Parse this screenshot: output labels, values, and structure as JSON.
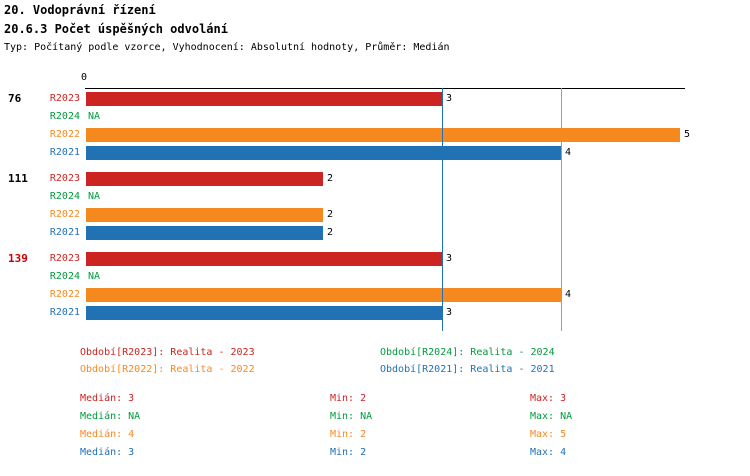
{
  "header": {
    "title1": "20. Vodoprávní řízení",
    "title2": "20.6.3 Počet úspěšných odvolání",
    "subtitle": "Typ: Počítaný podle vzorce, Vyhodnocení: Absolutní hodnoty, Průměr: Medián"
  },
  "colors": {
    "R2023": "#cc2421",
    "R2024": "#009a3d",
    "R2022": "#f6891e",
    "R2021": "#2171b5",
    "group_highlight": "#cc0000",
    "group_default": "#000000",
    "axis": "#000000",
    "value_label": "#000000"
  },
  "chart_data": {
    "type": "bar",
    "orientation": "horizontal",
    "title": "20.6.3 Počet úspěšných odvolání",
    "value_axis": {
      "origin_label": "0",
      "min": 0,
      "max": 5,
      "grid": false
    },
    "series_order": [
      "R2023",
      "R2024",
      "R2022",
      "R2021"
    ],
    "groups": [
      {
        "label": "76",
        "highlight": false,
        "rows": [
          {
            "series": "R2023",
            "value": 3,
            "value_label": "3"
          },
          {
            "series": "R2024",
            "value": null,
            "value_label": "NA"
          },
          {
            "series": "R2022",
            "value": 5,
            "value_label": "5"
          },
          {
            "series": "R2021",
            "value": 4,
            "value_label": "4"
          }
        ]
      },
      {
        "label": "111",
        "highlight": false,
        "rows": [
          {
            "series": "R2023",
            "value": 2,
            "value_label": "2"
          },
          {
            "series": "R2024",
            "value": null,
            "value_label": "NA"
          },
          {
            "series": "R2022",
            "value": 2,
            "value_label": "2"
          },
          {
            "series": "R2021",
            "value": 2,
            "value_label": "2"
          }
        ]
      },
      {
        "label": "139",
        "highlight": true,
        "rows": [
          {
            "series": "R2023",
            "value": 3,
            "value_label": "3"
          },
          {
            "series": "R2024",
            "value": null,
            "value_label": "NA"
          },
          {
            "series": "R2022",
            "value": 4,
            "value_label": "4"
          },
          {
            "series": "R2021",
            "value": 3,
            "value_label": "3"
          }
        ]
      }
    ],
    "median_lines": [
      {
        "series": "R2021",
        "value": 3
      },
      {
        "series": "R2022",
        "value": 4
      }
    ]
  },
  "legend": [
    {
      "series": "R2023",
      "text": "Období[R2023]: Realita - 2023"
    },
    {
      "series": "R2024",
      "text": "Období[R2024]: Realita - 2024"
    },
    {
      "series": "R2022",
      "text": "Období[R2022]: Realita - 2022"
    },
    {
      "series": "R2021",
      "text": "Období[R2021]: Realita - 2021"
    }
  ],
  "stats": [
    {
      "series": "R2023",
      "median": "Medián: 3",
      "min": "Min: 2",
      "max": "Max: 3"
    },
    {
      "series": "R2024",
      "median": "Medián: NA",
      "min": "Min: NA",
      "max": "Max: NA"
    },
    {
      "series": "R2022",
      "median": "Medián: 4",
      "min": "Min: 2",
      "max": "Max: 5"
    },
    {
      "series": "R2021",
      "median": "Medián: 3",
      "min": "Min: 2",
      "max": "Max: 4"
    }
  ]
}
